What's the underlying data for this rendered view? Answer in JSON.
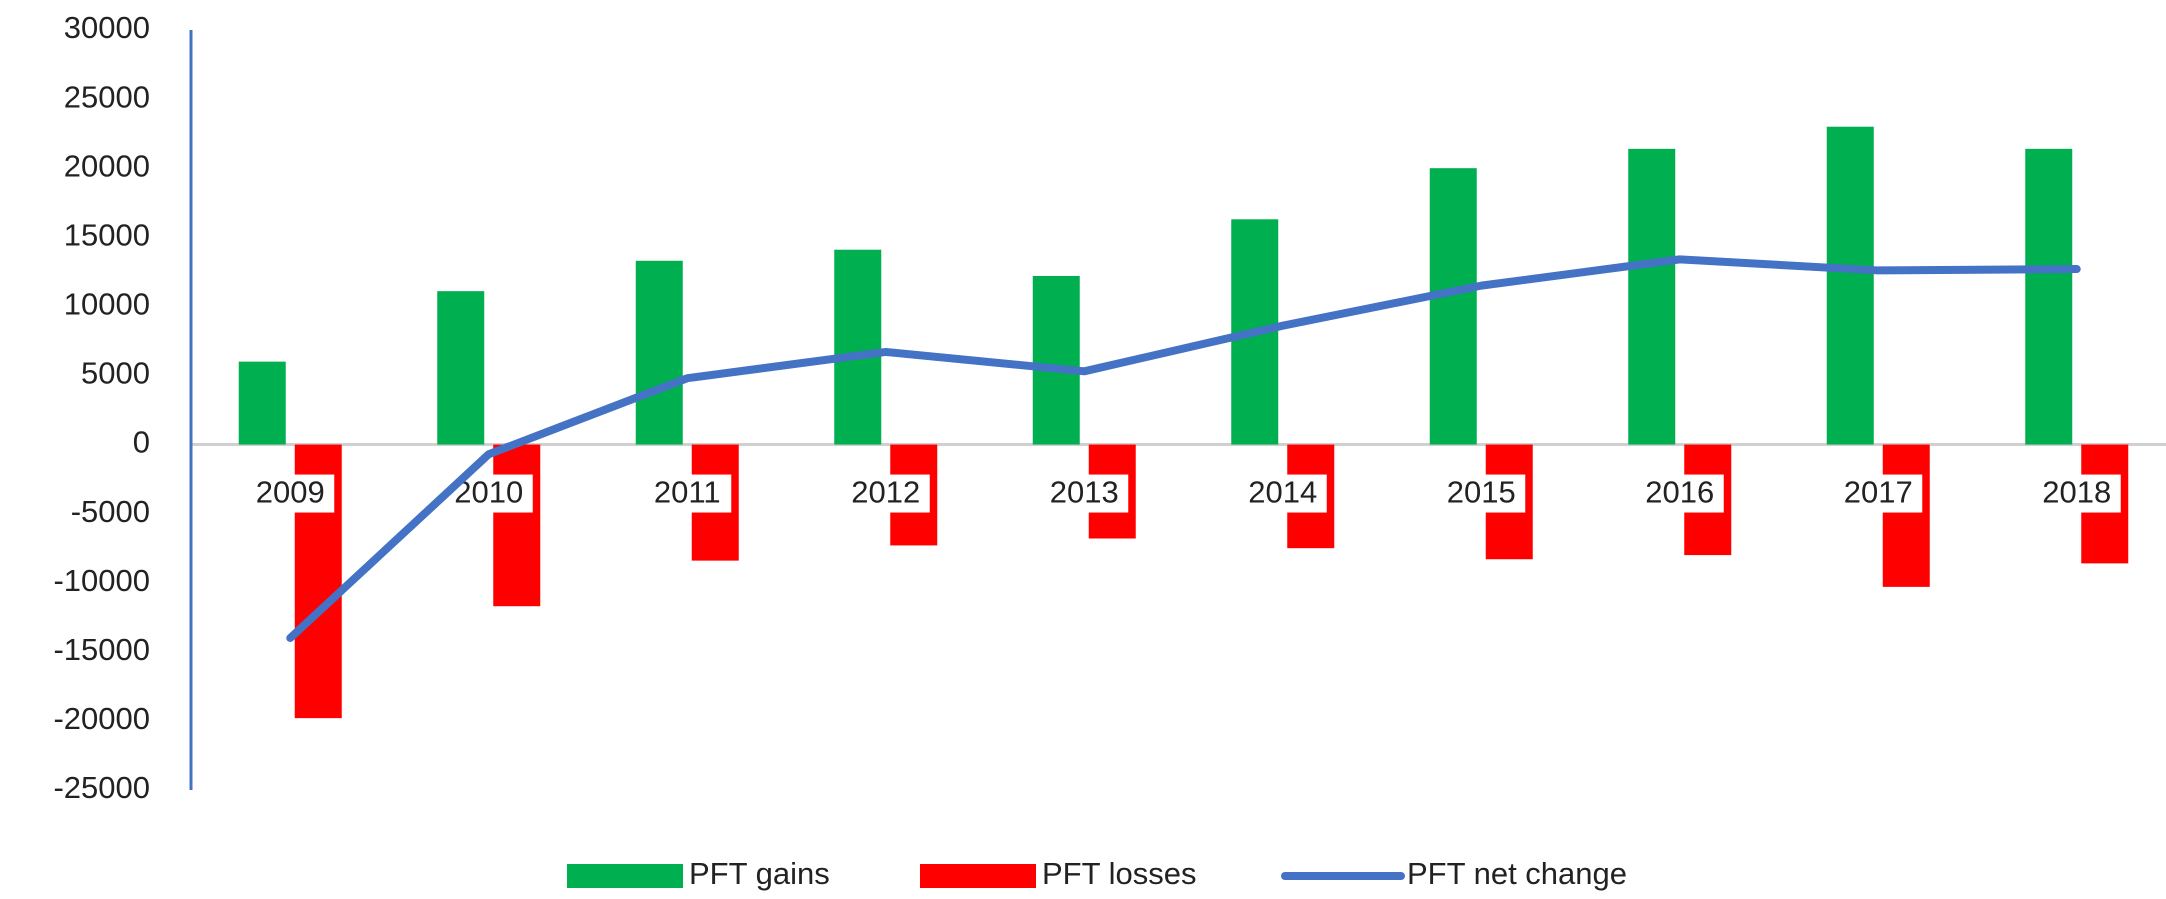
{
  "chart_data": {
    "type": "bar+line",
    "categories": [
      "2009",
      "2010",
      "2011",
      "2012",
      "2013",
      "2014",
      "2015",
      "2016",
      "2017",
      "2018"
    ],
    "series": [
      {
        "name": "PFT gains",
        "type": "bar",
        "color": "#00b050",
        "values": [
          6000,
          11100,
          13300,
          14100,
          12200,
          16300,
          20000,
          21400,
          23000,
          21400
        ]
      },
      {
        "name": "PFT losses",
        "type": "bar",
        "color": "#ff0000",
        "values": [
          -19800,
          -11700,
          -8400,
          -7300,
          -6800,
          -7500,
          -8300,
          -8000,
          -10300,
          -8600
        ]
      },
      {
        "name": "PFT net change",
        "type": "line",
        "color": "#4472c4",
        "values": [
          -14000,
          -700,
          4800,
          6700,
          5300,
          8600,
          11500,
          13400,
          12600,
          12700
        ]
      }
    ],
    "ylim": [
      -25000,
      30000
    ],
    "yticks": [
      -25000,
      -20000,
      -15000,
      -10000,
      -5000,
      0,
      5000,
      10000,
      15000,
      20000,
      25000,
      30000
    ],
    "legend": "bottom"
  }
}
